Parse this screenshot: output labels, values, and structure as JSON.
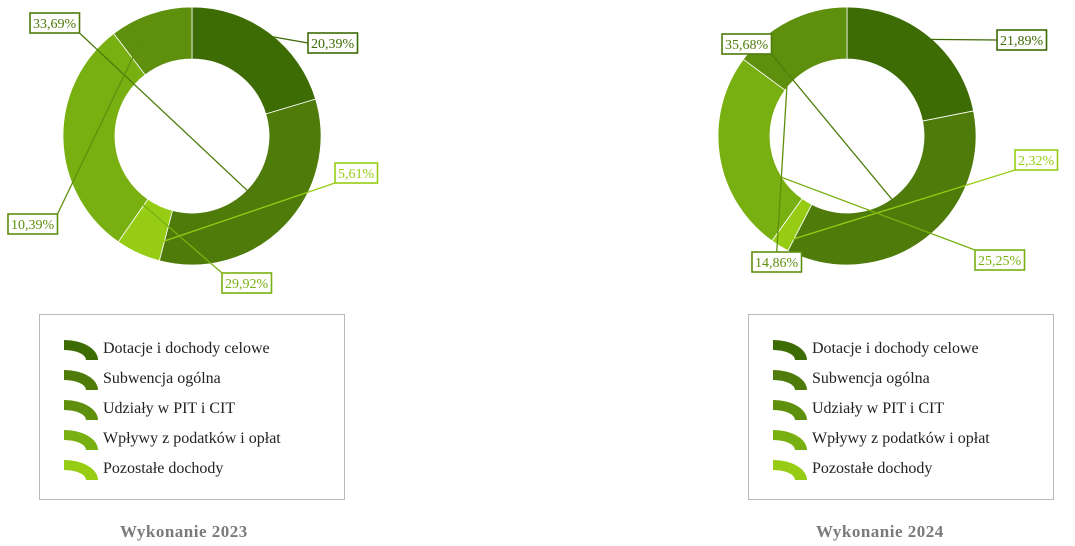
{
  "colors": {
    "dotacje": "#3d6b04",
    "subwencja": "#4e7b0a",
    "udzialy": "#5e8f0d",
    "wplywy": "#79b011",
    "pozostale": "#96cd14",
    "legend_border": "#b9b9b9",
    "caption": "#7a7a7a"
  },
  "chart_data": [
    {
      "type": "pie",
      "variant": "donut",
      "caption": "Wykonanie 2023",
      "categories": [
        "Dotacje i dochody celowe",
        "Subwencja ogólna",
        "Pozostałe dochody",
        "Wpływy z podatków i opłat",
        "Udziały w PIT i CIT"
      ],
      "values": [
        20.39,
        33.69,
        5.61,
        29.92,
        10.39
      ],
      "labels": [
        "20,39%",
        "33,69%",
        "5,61%",
        "29,92%",
        "10,39%"
      ],
      "legend_position": "bottom"
    },
    {
      "type": "pie",
      "variant": "donut",
      "caption": "Wykonanie 2024",
      "categories": [
        "Dotacje i dochody celowe",
        "Subwencja ogólna",
        "Pozostałe dochody",
        "Wpływy z podatków i opłat",
        "Udziały w PIT i CIT"
      ],
      "values": [
        21.89,
        35.68,
        2.32,
        25.25,
        14.86
      ],
      "labels": [
        "21,89%",
        "35,68%",
        "2,32%",
        "25,25%",
        "14,86%"
      ],
      "legend_position": "bottom"
    }
  ],
  "legend": {
    "items": [
      {
        "label": "Dotacje i dochody celowe",
        "color_key": "dotacje"
      },
      {
        "label": "Subwencja ogólna",
        "color_key": "subwencja"
      },
      {
        "label": "Udziały w PIT i CIT",
        "color_key": "udzialy"
      },
      {
        "label": "Wpływy z podatków i opłat",
        "color_key": "wplywy"
      },
      {
        "label": "Pozostałe dochody",
        "color_key": "pozostale"
      }
    ]
  }
}
